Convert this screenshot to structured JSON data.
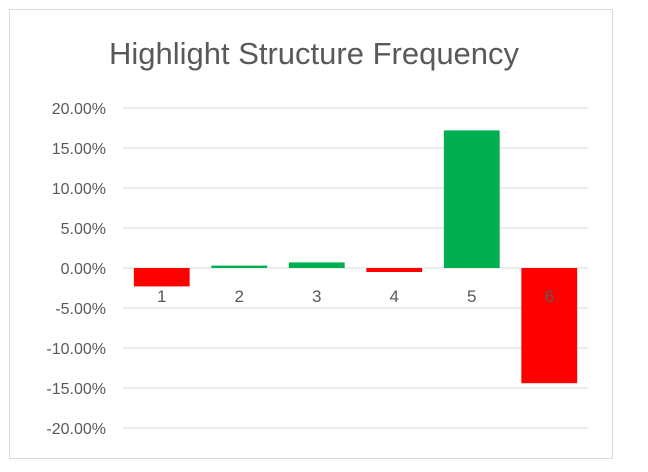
{
  "chart_data": {
    "type": "bar",
    "title": "Highlight Structure Frequency",
    "xlabel": "",
    "ylabel": "",
    "categories": [
      "1",
      "2",
      "3",
      "4",
      "5",
      "6"
    ],
    "values": [
      -0.023,
      0.003,
      0.007,
      -0.005,
      0.172,
      -0.144
    ],
    "ylim": [
      -0.2,
      0.2
    ],
    "yticks": [
      0.2,
      0.15,
      0.1,
      0.05,
      0.0,
      -0.05,
      -0.1,
      -0.15,
      -0.2
    ],
    "ytick_labels": [
      "20.00%",
      "15.00%",
      "10.00%",
      "5.00%",
      "0.00%",
      "-5.00%",
      "-10.00%",
      "-15.00%",
      "-20.00%"
    ],
    "grid": true,
    "legend": "none",
    "positive_color": "#00b050",
    "negative_color": "#ff0000"
  }
}
